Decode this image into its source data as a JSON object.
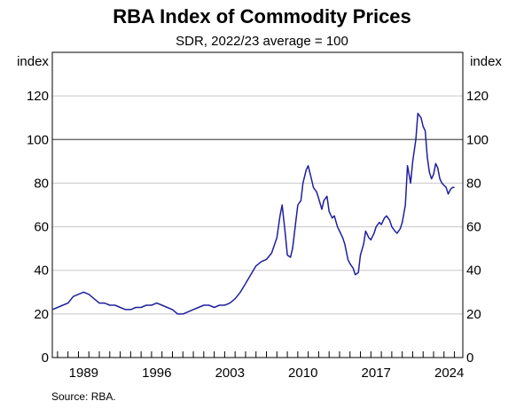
{
  "chart_data": {
    "type": "line",
    "title": "RBA Index of Commodity Prices",
    "subtitle": "SDR, 2022/23 average = 100",
    "ylabel_left": "index",
    "ylabel_right": "index",
    "ylim": [
      0,
      140
    ],
    "yticks": [
      0,
      20,
      40,
      60,
      80,
      100,
      120
    ],
    "xlim": [
      1986.5,
      2025.8
    ],
    "xticks": [
      1989,
      1996,
      2003,
      2010,
      2017,
      2024
    ],
    "xtick_labels": [
      "1989",
      "1996",
      "2003",
      "2010",
      "2017",
      "2024"
    ],
    "reference_line": 100,
    "grid": true,
    "line_color": "#1f1f9e",
    "series": [
      {
        "x": [
          1986.5,
          1987.0,
          1987.5,
          1988.0,
          1988.5,
          1989.0,
          1989.5,
          1990.0,
          1990.5,
          1991.0,
          1991.5,
          1992.0,
          1992.5,
          1993.0,
          1993.5,
          1994.0,
          1994.5,
          1995.0,
          1995.5,
          1996.0,
          1996.5,
          1997.0,
          1997.5,
          1998.0,
          1998.5,
          1999.0,
          1999.5,
          2000.0,
          2000.5,
          2001.0,
          2001.5,
          2002.0,
          2002.5,
          2003.0,
          2003.5,
          2004.0,
          2004.5,
          2005.0,
          2005.5,
          2006.0,
          2006.5,
          2007.0,
          2007.5,
          2008.0,
          2008.3,
          2008.5,
          2008.8,
          2009.0,
          2009.3,
          2009.5,
          2009.8,
          2010.0,
          2010.3,
          2010.5,
          2010.8,
          2011.0,
          2011.3,
          2011.5,
          2011.8,
          2012.0,
          2012.3,
          2012.5,
          2012.8,
          2013.0,
          2013.3,
          2013.5,
          2013.8,
          2014.0,
          2014.3,
          2014.5,
          2014.8,
          2015.0,
          2015.3,
          2015.5,
          2015.8,
          2016.0,
          2016.3,
          2016.5,
          2016.8,
          2017.0,
          2017.3,
          2017.5,
          2017.8,
          2018.0,
          2018.3,
          2018.5,
          2018.8,
          2019.0,
          2019.3,
          2019.5,
          2019.8,
          2020.0,
          2020.3,
          2020.5,
          2020.8,
          2021.0,
          2021.3,
          2021.5,
          2021.8,
          2022.0,
          2022.2,
          2022.4,
          2022.6,
          2022.8,
          2023.0,
          2023.2,
          2023.4,
          2023.6,
          2023.8,
          2024.0,
          2024.2,
          2024.4,
          2024.6,
          2024.8,
          2025.0
        ],
        "values": [
          22,
          23,
          24,
          25,
          28,
          29,
          30,
          29,
          27,
          25,
          25,
          24,
          24,
          23,
          22,
          22,
          23,
          23,
          24,
          24,
          25,
          24,
          23,
          22,
          20,
          20,
          21,
          22,
          23,
          24,
          24,
          23,
          24,
          24,
          25,
          27,
          30,
          34,
          38,
          42,
          44,
          45,
          48,
          55,
          65,
          70,
          57,
          47,
          46,
          50,
          62,
          70,
          72,
          80,
          86,
          88,
          82,
          78,
          76,
          73,
          68,
          72,
          74,
          67,
          64,
          65,
          60,
          58,
          55,
          52,
          45,
          43,
          41,
          38,
          39,
          47,
          52,
          58,
          55,
          54,
          57,
          60,
          62,
          61,
          64,
          65,
          63,
          60,
          58,
          57,
          59,
          62,
          70,
          88,
          80,
          90,
          100,
          112,
          110,
          106,
          104,
          92,
          85,
          82,
          84,
          89,
          87,
          82,
          80,
          79,
          78,
          75,
          77,
          78,
          78
        ]
      }
    ],
    "source": "Source:   RBA."
  }
}
